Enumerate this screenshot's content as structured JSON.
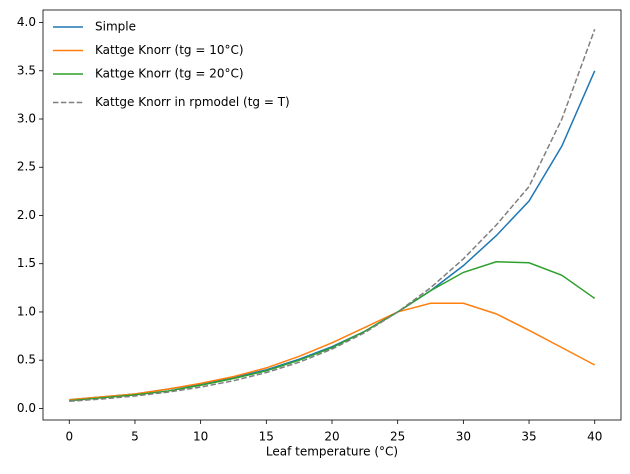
{
  "chart_data": {
    "type": "line",
    "xlabel": "Leaf temperature (°C)",
    "x": [
      0,
      2.5,
      5,
      7.5,
      10,
      12.5,
      15,
      17.5,
      20,
      22.5,
      25,
      27.5,
      30,
      32.5,
      35,
      37.5,
      40
    ],
    "series": [
      {
        "name": "Simple",
        "color": "#1f77b4",
        "dashed": false,
        "values": [
          0.09,
          0.12,
          0.15,
          0.2,
          0.25,
          0.32,
          0.4,
          0.51,
          0.64,
          0.8,
          1.0,
          1.22,
          1.48,
          1.79,
          2.15,
          2.72,
          3.5
        ]
      },
      {
        "name": "Kattge Knorr (tg = 10°C)",
        "color": "#ff7f0e",
        "dashed": false,
        "values": [
          0.09,
          0.12,
          0.15,
          0.2,
          0.26,
          0.33,
          0.42,
          0.54,
          0.68,
          0.84,
          1.0,
          1.09,
          1.09,
          0.98,
          0.81,
          0.63,
          0.45
        ]
      },
      {
        "name": "Kattge Knorr (tg = 20°C)",
        "color": "#2ca02c",
        "dashed": false,
        "values": [
          0.08,
          0.11,
          0.14,
          0.18,
          0.24,
          0.31,
          0.39,
          0.5,
          0.63,
          0.8,
          1.0,
          1.22,
          1.41,
          1.52,
          1.51,
          1.38,
          1.14
        ]
      },
      {
        "name": "Kattge Knorr in rpmodel (tg = T)",
        "color": "#7f7f7f",
        "dashed": true,
        "values": [
          0.074,
          0.098,
          0.129,
          0.169,
          0.221,
          0.287,
          0.372,
          0.479,
          0.615,
          0.786,
          1.0,
          1.25,
          1.55,
          1.9,
          2.3,
          3.0,
          3.93
        ]
      }
    ],
    "xlim": [
      -2,
      42
    ],
    "xticks": [
      0,
      5,
      10,
      15,
      20,
      25,
      30,
      35,
      40
    ],
    "ylim": [
      -0.12,
      4.13
    ],
    "yticks": [
      {
        "value": 0,
        "label": "0.0"
      },
      0.5,
      {
        "value": 1,
        "label": "1.0"
      },
      1.5,
      {
        "value": 2,
        "label": "2.0"
      },
      2.5,
      {
        "value": 3,
        "label": "3.0"
      },
      3.5,
      {
        "value": 4,
        "label": "4.0"
      }
    ],
    "legend": "upper left"
  }
}
